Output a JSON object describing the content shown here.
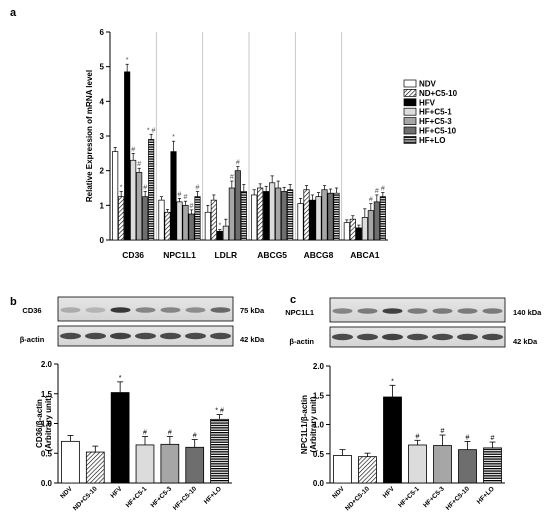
{
  "panels": {
    "a": "a",
    "b": "b",
    "c": "c"
  },
  "patterns": {
    "NDV": "white",
    "ND+C5-10": "hatch",
    "HFV": "black",
    "HF+C5-1": "light-gray",
    "HF+C5-3": "gray",
    "HF+C5-10": "dark-gray",
    "HF+LO": "horizontal-stripes"
  },
  "chart_data": [
    {
      "type": "bar",
      "ylabel": "Relative Expression of mRNA level",
      "ylim": [
        0,
        6
      ],
      "yticks": [
        "0",
        "1",
        "2",
        "3",
        "4",
        "5",
        "6"
      ],
      "categories": [
        "CD36",
        "NPC1L1",
        "LDLR",
        "ABCG5",
        "ABCG8",
        "ABCA1"
      ],
      "legend": [
        "NDV",
        "ND+C5-10",
        "HFV",
        "HF+C5-1",
        "HF+C5-3",
        "HF+C5-10",
        "HF+LO"
      ],
      "legend_position": "right",
      "series": [
        {
          "name": "NDV",
          "values": [
            2.55,
            1.15,
            0.8,
            1.3,
            1.05,
            0.5
          ],
          "errors": [
            0.12,
            0.1,
            0.2,
            0.15,
            0.15,
            0.08
          ],
          "marks": [
            "",
            "",
            "",
            "",
            "",
            ""
          ]
        },
        {
          "name": "ND+C5-10",
          "values": [
            1.25,
            0.8,
            1.15,
            1.5,
            1.45,
            0.6
          ],
          "errors": [
            0.15,
            0.08,
            0.15,
            0.12,
            0.12,
            0.1
          ],
          "marks": [
            "*",
            "",
            "",
            "",
            "",
            ""
          ]
        },
        {
          "name": "HFV",
          "values": [
            4.85,
            2.55,
            0.25,
            1.4,
            1.15,
            0.35
          ],
          "errors": [
            0.22,
            0.3,
            0.05,
            0.15,
            0.15,
            0.08
          ],
          "marks": [
            "*",
            "*",
            "*",
            "",
            "",
            ""
          ]
        },
        {
          "name": "HF+C5-1",
          "values": [
            2.3,
            1.1,
            0.4,
            1.65,
            1.25,
            0.65
          ],
          "errors": [
            0.2,
            0.1,
            0.2,
            0.2,
            0.12,
            0.25
          ],
          "marks": [
            "#",
            "#",
            "",
            "",
            "",
            ""
          ]
        },
        {
          "name": "HF+C5-3",
          "values": [
            1.95,
            1.0,
            1.5,
            1.5,
            1.45,
            0.85
          ],
          "errors": [
            0.12,
            0.12,
            0.2,
            0.2,
            0.12,
            0.2
          ],
          "marks": [
            "#",
            "#",
            "#",
            "",
            "",
            "#"
          ]
        },
        {
          "name": "HF+C5-10",
          "values": [
            1.25,
            0.75,
            2.0,
            1.4,
            1.35,
            1.1
          ],
          "errors": [
            0.15,
            0.12,
            0.12,
            0.12,
            0.12,
            0.2
          ],
          "marks": [
            "#",
            "#",
            "#",
            "",
            "",
            "#"
          ]
        },
        {
          "name": "HF+LO",
          "values": [
            2.9,
            1.25,
            1.4,
            1.45,
            1.35,
            1.25
          ],
          "errors": [
            0.15,
            0.15,
            0.2,
            0.15,
            0.15,
            0.12
          ],
          "marks": [
            "* #",
            "#",
            "",
            "",
            "",
            "#"
          ]
        }
      ]
    },
    {
      "type": "bar",
      "ylabel": "CD36/β-actin",
      "ylabel2": "(Arbitrary unit)",
      "ylim": [
        0,
        2.0
      ],
      "yticks": [
        "0.0",
        "0.5",
        "1.0",
        "1.5",
        "2.0"
      ],
      "categories": [
        "NDV",
        "ND+C5-10",
        "HFV",
        "HF+C5-1",
        "HF+C5-3",
        "HF+C5-10",
        "HF+LO"
      ],
      "values": [
        0.7,
        0.52,
        1.52,
        0.64,
        0.65,
        0.6,
        1.07
      ],
      "errors": [
        0.1,
        0.1,
        0.18,
        0.14,
        0.13,
        0.13,
        0.08
      ],
      "marks": [
        "",
        "",
        "*",
        "#",
        "#",
        "#",
        "* #"
      ],
      "blot": {
        "protein": "CD36",
        "protein_kda": "75 kDa",
        "control": "β-actin",
        "control_kda": "42 kDa"
      }
    },
    {
      "type": "bar",
      "ylabel": "NPC1L1/β-actin",
      "ylabel2": "(Arbitrary unit)",
      "ylim": [
        0,
        2.0
      ],
      "yticks": [
        "0.0",
        "0.5",
        "1.0",
        "1.5",
        "2.0"
      ],
      "categories": [
        "NDV",
        "ND+C5-10",
        "HFV",
        "HF+C5-1",
        "HF+C5-3",
        "HF+C5-10",
        "HF+LO"
      ],
      "values": [
        0.47,
        0.45,
        1.47,
        0.65,
        0.64,
        0.57,
        0.6
      ],
      "errors": [
        0.1,
        0.06,
        0.2,
        0.08,
        0.18,
        0.14,
        0.1
      ],
      "marks": [
        "",
        "",
        "*",
        "#",
        "#",
        "#",
        "#"
      ],
      "blot": {
        "protein": "NPC1L1",
        "protein_kda": "140 kDa",
        "control": "β-actin",
        "control_kda": "42 kDa"
      }
    }
  ]
}
